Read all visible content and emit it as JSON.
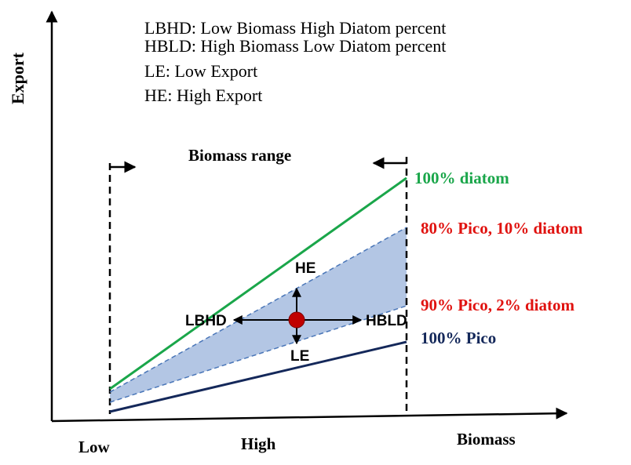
{
  "axes": {
    "y_label": "Export",
    "x_label": "Biomass",
    "x_tick_low": "Low",
    "x_tick_high": "High"
  },
  "legend_lines": [
    "LBHD: Low Biomass High Diatom percent",
    "HBLD: High Biomass Low Diatom percent",
    "LE: Low Export",
    "HE: High Export"
  ],
  "biomass_range_label": "Biomass range",
  "series": [
    {
      "key": "diatom100",
      "label": "100% diatom",
      "color": "#1aa64a"
    },
    {
      "key": "pico80",
      "label": "80% Pico, 10% diatom",
      "color": "#e0120f"
    },
    {
      "key": "pico90",
      "label": "90% Pico, 2% diatom",
      "color": "#e0120f"
    },
    {
      "key": "pico100",
      "label": "100% Pico",
      "color": "#14285a"
    }
  ],
  "band_color": "#b3c6e4",
  "dashed_line_color": "#4a76b8",
  "point_color": "#c00000",
  "arrow_labels": {
    "up": "HE",
    "down": "LE",
    "left": "LBHD",
    "right": "HBLD"
  }
}
